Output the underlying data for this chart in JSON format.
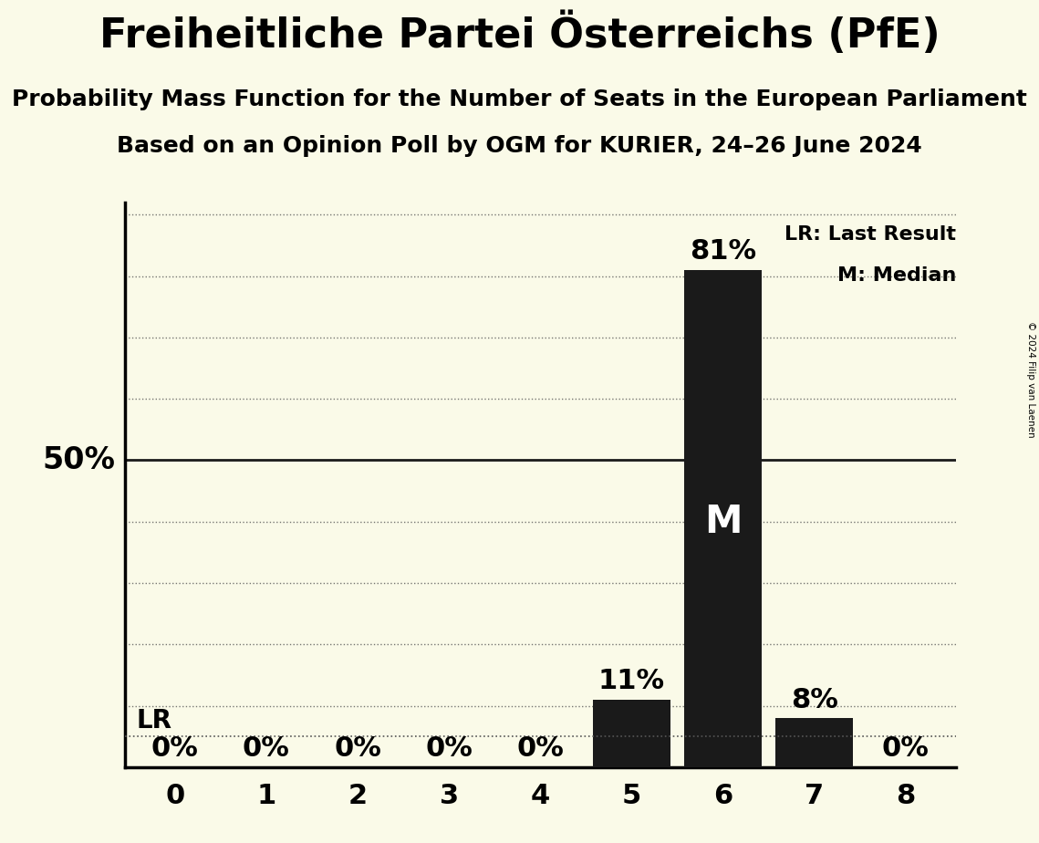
{
  "title": "Freiheitliche Partei Österreichs (PfE)",
  "subtitle1": "Probability Mass Function for the Number of Seats in the European Parliament",
  "subtitle2": "Based on an Opinion Poll by OGM for KURIER, 24–26 June 2024",
  "copyright": "© 2024 Filip van Laenen",
  "categories": [
    0,
    1,
    2,
    3,
    4,
    5,
    6,
    7,
    8
  ],
  "values": [
    0,
    0,
    0,
    0,
    0,
    11,
    81,
    8,
    0
  ],
  "bar_color": "#1a1a1a",
  "background_color": "#fafae8",
  "fifty_pct_line_color": "#1a1a1a",
  "lr_value": 5,
  "median_seat": 6,
  "legend_lr": "LR: Last Result",
  "legend_m": "M: Median",
  "ylim": [
    0,
    92
  ],
  "yticks": [
    10,
    20,
    30,
    40,
    50,
    60,
    70,
    80,
    90
  ],
  "grid_color": "#555555",
  "title_fontsize": 32,
  "subtitle_fontsize": 18,
  "label_fontsize": 20,
  "tick_fontsize": 22,
  "fifty_pct_fontsize": 24,
  "bar_label_fontsize": 22
}
